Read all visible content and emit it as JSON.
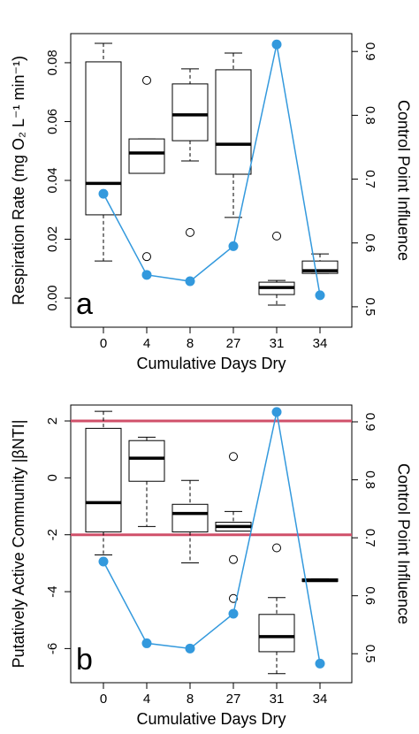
{
  "chart_data": [
    {
      "type": "box",
      "panel_label": "a",
      "x_label": "Cumulative Days Dry",
      "y_label": "Respiration Rate (mg O₂ L⁻¹ min⁻¹)",
      "y2_label": "Control Point Influence",
      "categories": [
        "0",
        "4",
        "8",
        "27",
        "31",
        "34"
      ],
      "ylim": [
        -0.0099,
        0.0899
      ],
      "yticks": [
        {
          "value": 0,
          "label": "0.00"
        },
        0.02,
        0.04,
        0.06,
        0.08
      ],
      "y2lim": [
        0.468,
        0.928
      ],
      "y2ticks": [
        0.5,
        0.6,
        0.7,
        0.8,
        0.9
      ],
      "boxes": [
        {
          "whisker_low": 0.0126,
          "q1": 0.0283,
          "median": 0.039,
          "q3": 0.0803,
          "whisker_high": 0.0866,
          "outliers": []
        },
        {
          "whisker_low": 0.0424,
          "q1": 0.0424,
          "median": 0.0493,
          "q3": 0.0541,
          "whisker_high": 0.0541,
          "outliers": [
            0.074,
            0.0141
          ]
        },
        {
          "whisker_low": 0.0466,
          "q1": 0.0535,
          "median": 0.0623,
          "q3": 0.0728,
          "whisker_high": 0.0779,
          "outliers": [
            0.0223
          ]
        },
        {
          "whisker_low": 0.0274,
          "q1": 0.0421,
          "median": 0.0523,
          "q3": 0.0776,
          "whisker_high": 0.0833,
          "outliers": []
        },
        {
          "whisker_low": -0.0024,
          "q1": 0.0012,
          "median": 0.0036,
          "q3": 0.0054,
          "whisker_high": 0.006,
          "outliers": [
            0.0211
          ]
        },
        {
          "whisker_low": 0.0084,
          "q1": 0.0084,
          "median": 0.0093,
          "q3": 0.0126,
          "whisker_high": 0.015,
          "outliers": []
        }
      ],
      "line": {
        "axis": "y2",
        "color": "#3399dd",
        "values": [
          0.677,
          0.55,
          0.54,
          0.595,
          0.911,
          0.518
        ]
      },
      "hlines": [],
      "hline_color": "#d0506a"
    },
    {
      "type": "box",
      "panel_label": "b",
      "x_label": "Cumulative Days Dry",
      "y_label": "Putatively Active Community |βNTI|",
      "y2_label": "Control Point Influence",
      "categories": [
        "0",
        "4",
        "8",
        "27",
        "31",
        "34"
      ],
      "ylim": [
        -7.2,
        2.56
      ],
      "yticks": [
        2,
        0,
        -2,
        -4,
        -6
      ],
      "y2lim": [
        0.45,
        0.929
      ],
      "y2ticks": [
        0.5,
        0.6,
        0.7,
        0.8,
        0.9
      ],
      "boxes": [
        {
          "whisker_low": -2.71,
          "q1": -1.9,
          "median": -0.87,
          "q3": 1.74,
          "whisker_high": 2.34,
          "outliers": []
        },
        {
          "whisker_low": -1.71,
          "q1": -0.12,
          "median": 0.69,
          "q3": 1.31,
          "whisker_high": 1.43,
          "outliers": []
        },
        {
          "whisker_low": -2.99,
          "q1": -1.9,
          "median": -1.25,
          "q3": -0.93,
          "whisker_high": -0.09,
          "outliers": []
        },
        {
          "whisker_low": -1.87,
          "q1": -1.87,
          "median": -1.71,
          "q3": -1.56,
          "whisker_high": -1.18,
          "outliers": [
            0.75,
            -2.87,
            -4.24
          ]
        },
        {
          "whisker_low": -6.88,
          "q1": -6.11,
          "median": -5.58,
          "q3": -4.8,
          "whisker_high": -4.21,
          "outliers": [
            -2.46
          ]
        },
        {
          "whisker_low": -3.64,
          "q1": -3.64,
          "median": -3.61,
          "q3": -3.55,
          "whisker_high": -3.55,
          "outliers": []
        }
      ],
      "line": {
        "axis": "y2",
        "color": "#3399dd",
        "values": [
          0.659,
          0.518,
          0.509,
          0.569,
          0.917,
          0.483
        ]
      },
      "hlines": [
        2,
        -2
      ],
      "hline_color": "#d0506a"
    }
  ]
}
